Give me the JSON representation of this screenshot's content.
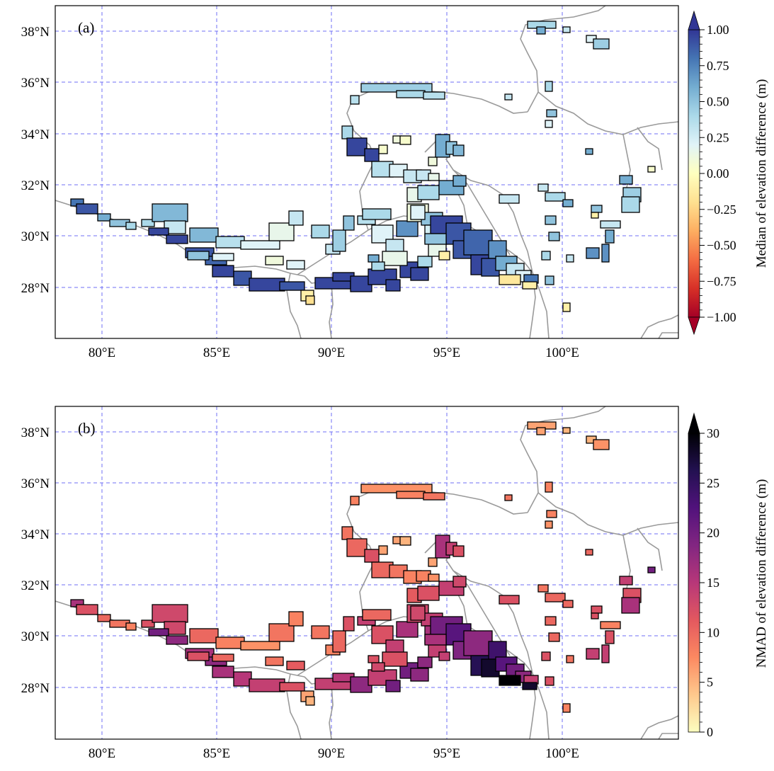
{
  "panels": [
    {
      "label": "(a)",
      "colorbar": {
        "label": "Median of elevation difference (m)",
        "ticks": [
          "1.00",
          "0.75",
          "0.50",
          "0.25",
          "0.00",
          "−0.25",
          "−0.50",
          "−0.75",
          "−1.00"
        ],
        "colormap": "RdYlBu (diverging)",
        "colors": [
          "#a50026",
          "#d73027",
          "#f46d43",
          "#fdae61",
          "#fee090",
          "#ffffbf",
          "#e0f3f8",
          "#abd9e9",
          "#74add1",
          "#4575b4",
          "#313695"
        ],
        "extend": "both"
      }
    },
    {
      "label": "(b)",
      "colorbar": {
        "label": "NMAD of elevation difference (m)",
        "ticks": [
          "30",
          "25",
          "20",
          "15",
          "10",
          "5",
          "0"
        ],
        "colormap": "magma_r",
        "colors": [
          "#fcfdbf",
          "#fec98d",
          "#fc8961",
          "#e3585f",
          "#b73779",
          "#822681",
          "#51127c",
          "#231151",
          "#000004"
        ],
        "extend": "max"
      }
    }
  ],
  "axes": {
    "lon_ticks": [
      "80°E",
      "85°E",
      "90°E",
      "95°E",
      "100°E"
    ],
    "lat_ticks": [
      "38°N",
      "36°N",
      "34°N",
      "32°N",
      "30°N",
      "28°N"
    ],
    "gridlines": "dashed blue",
    "lon_range": [
      78,
      105
    ],
    "lat_range": [
      26,
      39
    ]
  }
}
